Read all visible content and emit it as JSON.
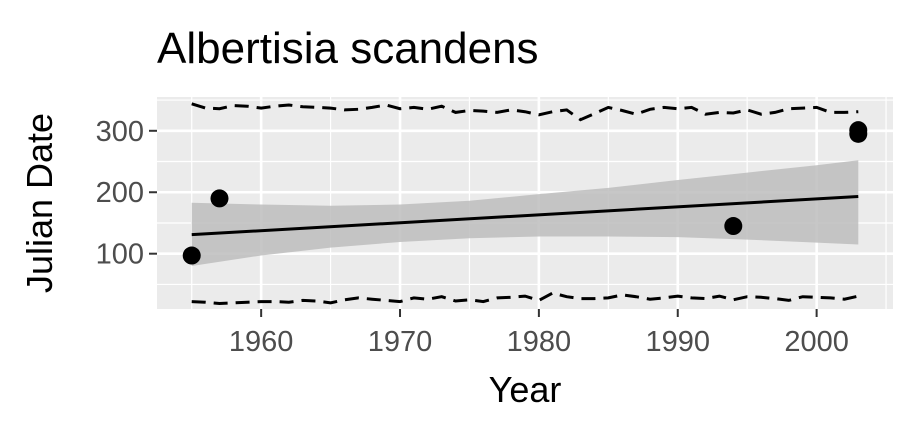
{
  "chart_data": {
    "type": "line",
    "title": "Albertisia scandens",
    "xlabel": "Year",
    "ylabel": "Julian Date",
    "xlim": [
      1952.5,
      2005.5
    ],
    "ylim": [
      10,
      355
    ],
    "x_ticks": [
      1960,
      1970,
      1980,
      1990,
      2000
    ],
    "y_ticks": [
      100,
      200,
      300
    ],
    "grid": true,
    "colors": {
      "panel": "#ebebeb",
      "grid": "#ffffff",
      "points": "#000000",
      "ribbon": "#bdbdbd",
      "tick_text": "#4d4d4d"
    },
    "points": [
      {
        "x": 1955,
        "y": 97
      },
      {
        "x": 1957,
        "y": 190
      },
      {
        "x": 1994,
        "y": 145
      },
      {
        "x": 2003,
        "y": 295
      },
      {
        "x": 2003,
        "y": 301
      }
    ],
    "fit_line": {
      "x": [
        1955,
        2003
      ],
      "y": [
        131,
        193
      ]
    },
    "confidence_band": {
      "x": [
        1955,
        1960,
        1965,
        1970,
        1975,
        1980,
        1985,
        1990,
        1995,
        2000,
        2003
      ],
      "lower": [
        80,
        97,
        110,
        119,
        125,
        128,
        128,
        127,
        123,
        118,
        115
      ],
      "upper": [
        183,
        180,
        178,
        180,
        186,
        197,
        207,
        220,
        232,
        244,
        252
      ]
    },
    "upper_dashed": {
      "x": [
        1955,
        1956,
        1957,
        1958,
        1959,
        1960,
        1961,
        1962,
        1963,
        1964,
        1965,
        1966,
        1967,
        1968,
        1969,
        1970,
        1971,
        1972,
        1973,
        1974,
        1975,
        1976,
        1977,
        1978,
        1979,
        1980,
        1981,
        1982,
        1983,
        1984,
        1985,
        1986,
        1987,
        1988,
        1989,
        1990,
        1991,
        1992,
        1993,
        1994,
        1995,
        1996,
        1997,
        1998,
        1999,
        2000,
        2001,
        2002,
        2003
      ],
      "y": [
        344,
        337,
        336,
        341,
        340,
        337,
        340,
        342,
        339,
        338,
        337,
        334,
        335,
        338,
        342,
        336,
        338,
        335,
        340,
        330,
        333,
        332,
        330,
        334,
        331,
        326,
        331,
        334,
        318,
        328,
        338,
        333,
        327,
        335,
        338,
        336,
        338,
        327,
        330,
        329,
        334,
        327,
        330,
        336,
        337,
        338,
        330,
        330,
        331
      ]
    },
    "lower_dashed": {
      "x": [
        1955,
        1956,
        1957,
        1958,
        1959,
        1960,
        1961,
        1962,
        1963,
        1964,
        1965,
        1966,
        1967,
        1968,
        1969,
        1970,
        1971,
        1972,
        1973,
        1974,
        1975,
        1976,
        1977,
        1978,
        1979,
        1980,
        1981,
        1982,
        1983,
        1984,
        1985,
        1986,
        1987,
        1988,
        1989,
        1990,
        1991,
        1992,
        1993,
        1994,
        1995,
        1996,
        1997,
        1998,
        1999,
        2000,
        2001,
        2002,
        2003
      ],
      "y": [
        22,
        21,
        19,
        20,
        21,
        22,
        22,
        21,
        24,
        23,
        20,
        25,
        28,
        26,
        24,
        22,
        28,
        26,
        30,
        23,
        25,
        22,
        28,
        29,
        31,
        24,
        36,
        30,
        27,
        27,
        28,
        33,
        30,
        26,
        28,
        31,
        28,
        27,
        31,
        25,
        30,
        29,
        27,
        24,
        30,
        29,
        28,
        26,
        31
      ]
    }
  }
}
